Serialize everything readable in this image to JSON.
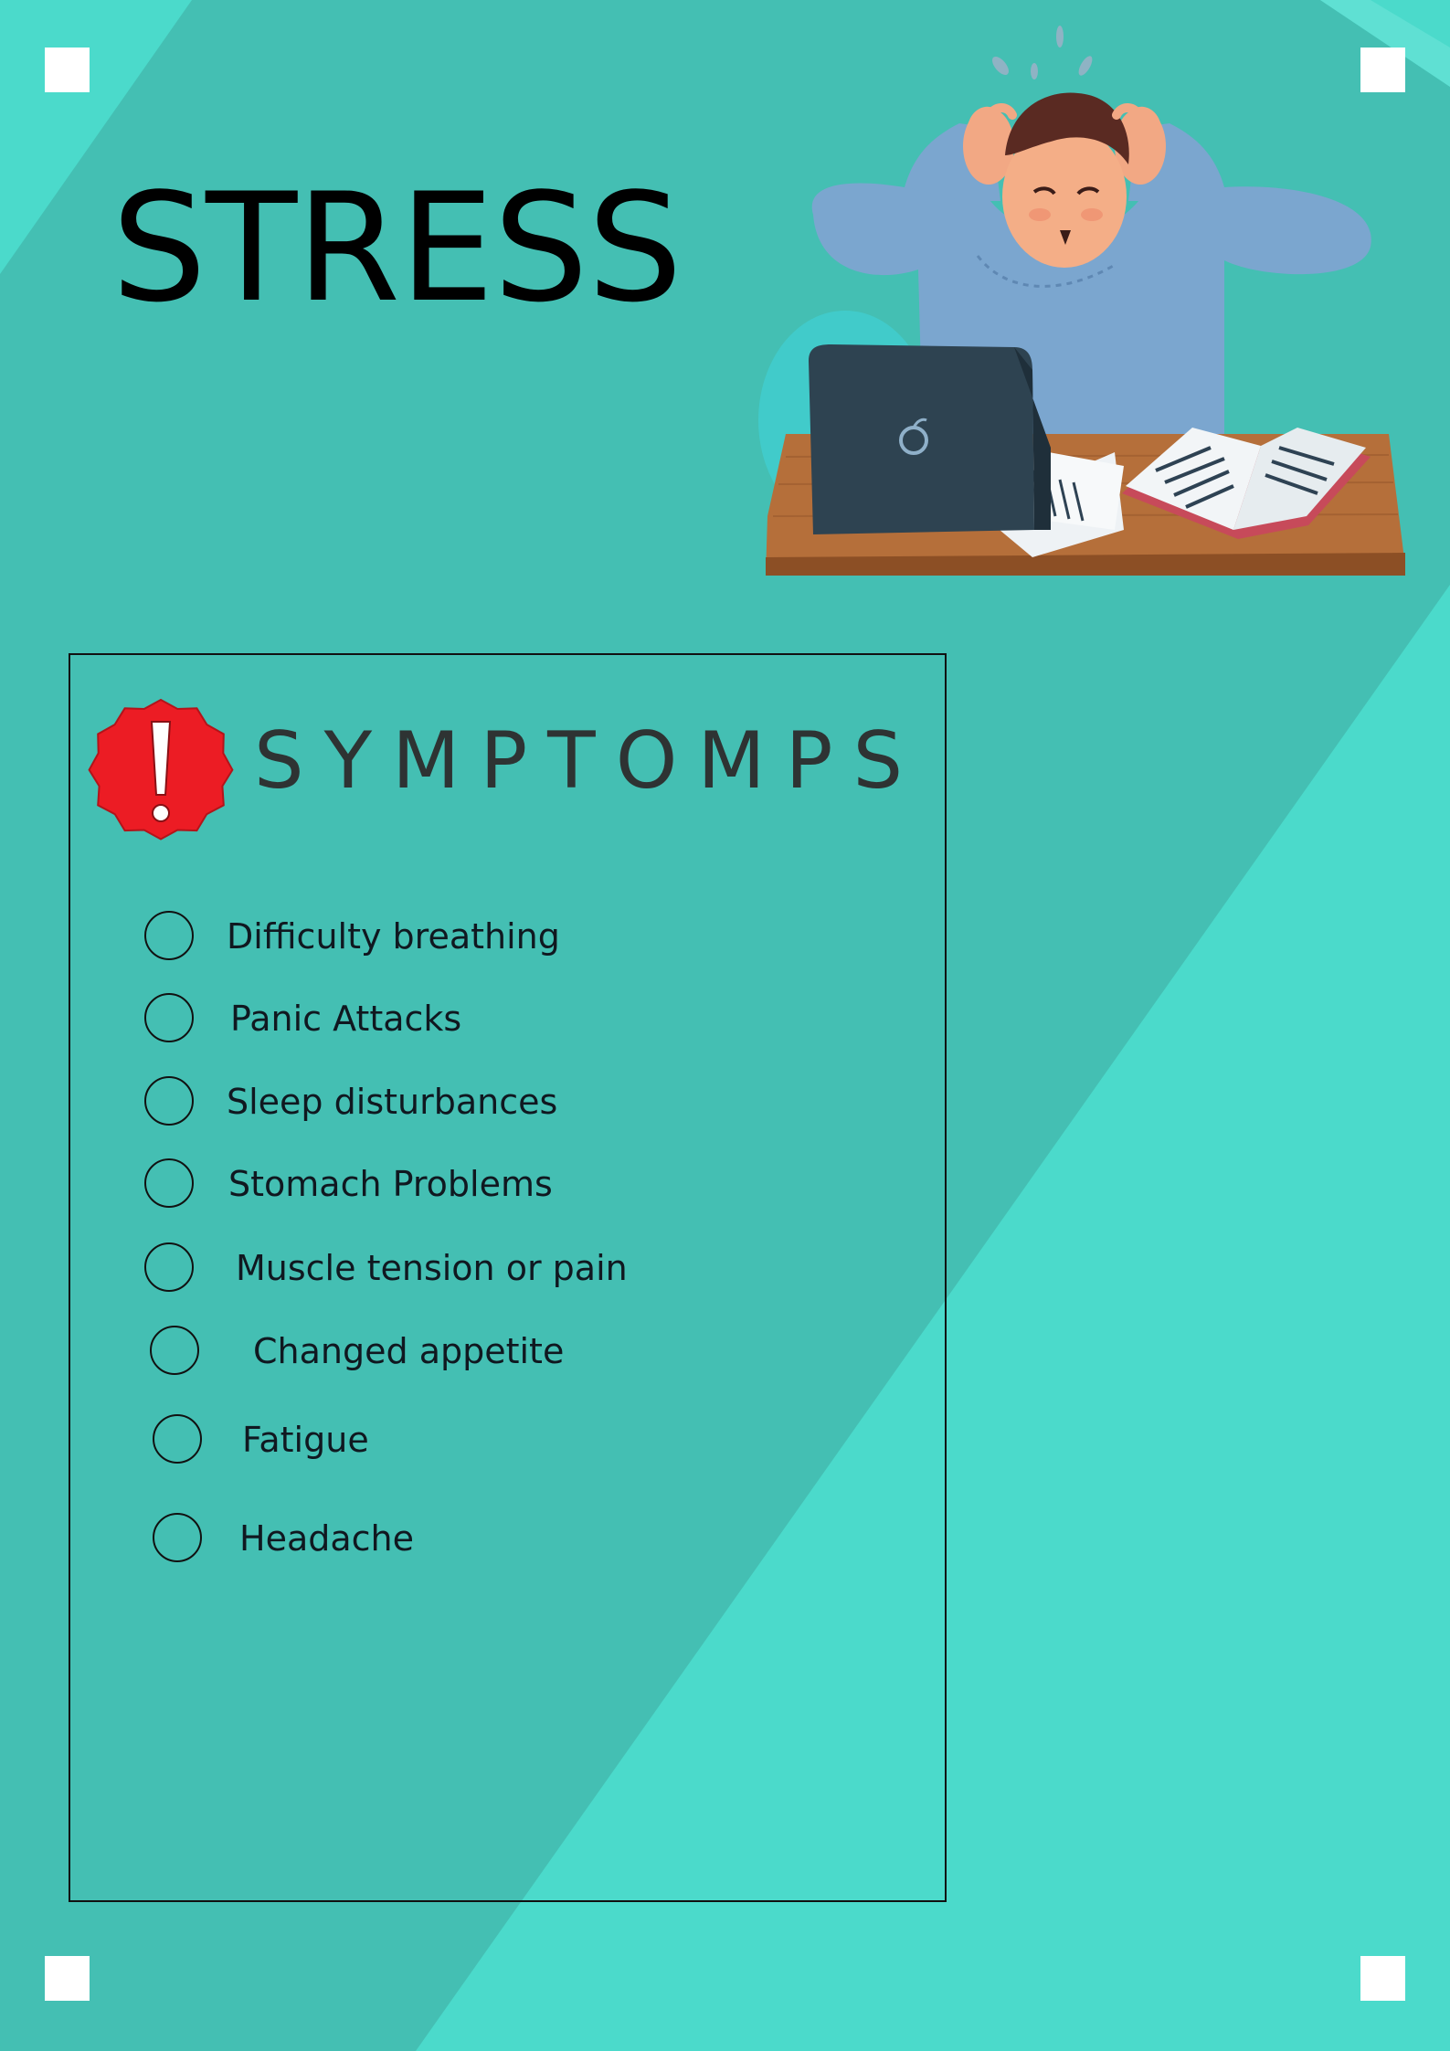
{
  "poster": {
    "title": "STRESS",
    "colors": {
      "background_dark": "#44bfb3",
      "background_light": "#4bdacb",
      "title_text": "#000000",
      "heading_text": "#2e3333",
      "warning_badge": "#ec1c24"
    }
  },
  "symptoms": {
    "heading": "SYMPTOMPS",
    "icon": "warning-badge-icon",
    "items": [
      {
        "label": "Difficulty breathing"
      },
      {
        "label": "Panic Attacks"
      },
      {
        "label": "Sleep disturbances"
      },
      {
        "label": "Stomach Problems"
      },
      {
        "label": "Muscle tension or pain"
      },
      {
        "label": "Changed appetite"
      },
      {
        "label": "Fatigue"
      },
      {
        "label": "Headache"
      }
    ]
  },
  "illustration": {
    "icon": "stressed-student-at-laptop-illustration"
  }
}
